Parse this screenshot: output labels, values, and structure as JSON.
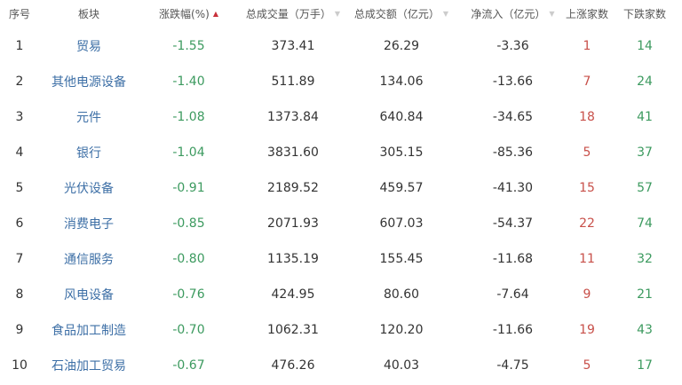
{
  "headers": [
    "序号",
    "板块",
    "涨跌幅(%)",
    "总成交量（万手）",
    "总成交额（亿元）",
    "净流入（亿元）",
    "上涨家数",
    "下跌家数"
  ],
  "sort_icons": {
    "change": "sort-asc-active",
    "volume": "sort-desc",
    "amount": "sort-desc",
    "inflow": "sort-desc"
  },
  "colors": {
    "link": "#3d6fa6",
    "down": "#3c9a5f",
    "up": "#c8504a"
  },
  "rows": [
    [
      "1",
      "贸易",
      "-1.55",
      "373.41",
      "26.29",
      "-3.36",
      "1",
      "14"
    ],
    [
      "2",
      "其他电源设备",
      "-1.40",
      "511.89",
      "134.06",
      "-13.66",
      "7",
      "24"
    ],
    [
      "3",
      "元件",
      "-1.08",
      "1373.84",
      "640.84",
      "-34.65",
      "18",
      "41"
    ],
    [
      "4",
      "银行",
      "-1.04",
      "3831.60",
      "305.15",
      "-85.36",
      "5",
      "37"
    ],
    [
      "5",
      "光伏设备",
      "-0.91",
      "2189.52",
      "459.57",
      "-41.30",
      "15",
      "57"
    ],
    [
      "6",
      "消费电子",
      "-0.85",
      "2071.93",
      "607.03",
      "-54.37",
      "22",
      "74"
    ],
    [
      "7",
      "通信服务",
      "-0.80",
      "1135.19",
      "155.45",
      "-11.68",
      "11",
      "32"
    ],
    [
      "8",
      "风电设备",
      "-0.76",
      "424.95",
      "80.60",
      "-7.64",
      "9",
      "21"
    ],
    [
      "9",
      "食品加工制造",
      "-0.70",
      "1062.31",
      "120.20",
      "-11.66",
      "19",
      "43"
    ],
    [
      "10",
      "石油加工贸易",
      "-0.67",
      "476.26",
      "40.03",
      "-4.75",
      "5",
      "17"
    ]
  ]
}
